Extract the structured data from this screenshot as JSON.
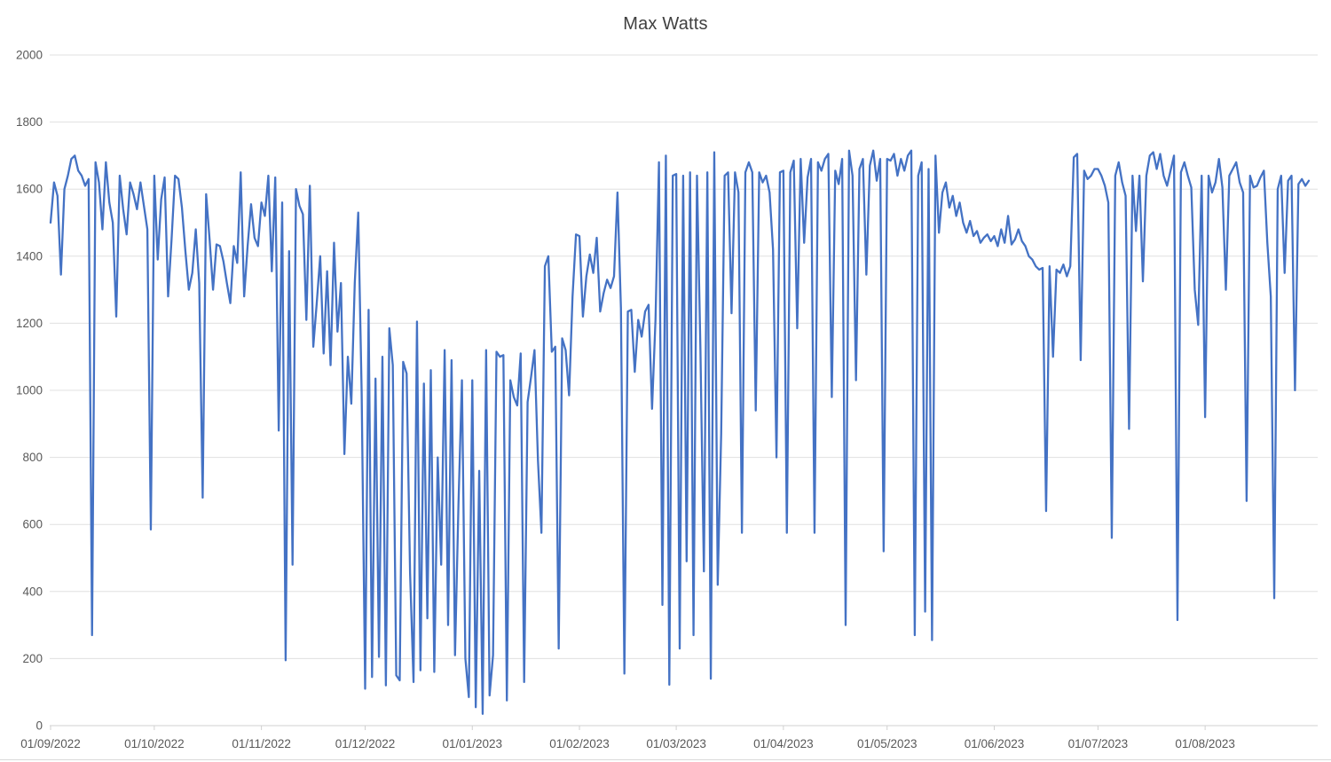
{
  "chart_data": {
    "type": "line",
    "title": "Max Watts",
    "series_name": "Max Watts",
    "xlabel": "",
    "ylabel": "",
    "ylim": [
      0,
      2000
    ],
    "grid": "horizontal",
    "legend": "none",
    "line_color": "#4472C4",
    "gridline_color": "#e0e0e0",
    "axis_line_color": "#d0d0d0",
    "tick_label_color": "#595959",
    "y_ticks": [
      0,
      200,
      400,
      600,
      800,
      1000,
      1200,
      1400,
      1600,
      1800,
      2000
    ],
    "x_tick_labels": [
      "01/09/2022",
      "01/10/2022",
      "01/11/2022",
      "01/12/2022",
      "01/01/2023",
      "01/02/2023",
      "01/03/2023",
      "01/04/2023",
      "01/05/2023",
      "01/06/2023",
      "01/07/2023",
      "01/08/2023"
    ],
    "x_tick_day_indices": [
      0,
      30,
      61,
      91,
      122,
      153,
      181,
      212,
      242,
      273,
      303,
      334
    ],
    "values": [
      1500,
      1620,
      1580,
      1345,
      1600,
      1640,
      1690,
      1700,
      1655,
      1640,
      1610,
      1630,
      270,
      1680,
      1620,
      1480,
      1680,
      1560,
      1500,
      1220,
      1640,
      1540,
      1465,
      1620,
      1585,
      1540,
      1620,
      1550,
      1480,
      585,
      1640,
      1390,
      1570,
      1635,
      1280,
      1450,
      1640,
      1630,
      1545,
      1415,
      1300,
      1350,
      1480,
      1320,
      680,
      1585,
      1450,
      1300,
      1435,
      1430,
      1385,
      1320,
      1260,
      1430,
      1380,
      1650,
      1280,
      1430,
      1555,
      1455,
      1430,
      1560,
      1520,
      1640,
      1355,
      1635,
      880,
      1560,
      195,
      1415,
      480,
      1600,
      1550,
      1525,
      1210,
      1610,
      1130,
      1260,
      1400,
      1110,
      1355,
      1075,
      1440,
      1175,
      1320,
      810,
      1100,
      960,
      1320,
      1530,
      990,
      110,
      1240,
      145,
      1035,
      205,
      1100,
      120,
      1185,
      1075,
      150,
      135,
      1085,
      1050,
      455,
      130,
      1205,
      165,
      1020,
      320,
      1060,
      160,
      800,
      480,
      1120,
      300,
      1090,
      210,
      660,
      1030,
      200,
      85,
      1030,
      55,
      760,
      35,
      1120,
      90,
      210,
      1115,
      1100,
      1105,
      75,
      1030,
      980,
      955,
      1110,
      130,
      965,
      1040,
      1120,
      790,
      575,
      1370,
      1400,
      1115,
      1130,
      230,
      1155,
      1120,
      985,
      1280,
      1465,
      1460,
      1220,
      1340,
      1405,
      1350,
      1455,
      1235,
      1290,
      1330,
      1305,
      1340,
      1590,
      1245,
      155,
      1235,
      1240,
      1055,
      1210,
      1160,
      1235,
      1255,
      945,
      1210,
      1680,
      360,
      1700,
      122,
      1640,
      1645,
      230,
      1640,
      490,
      1650,
      270,
      1640,
      1120,
      460,
      1650,
      140,
      1710,
      420,
      870,
      1640,
      1650,
      1230,
      1650,
      1590,
      575,
      1650,
      1680,
      1650,
      940,
      1650,
      1620,
      1640,
      1590,
      1420,
      800,
      1650,
      1655,
      575,
      1650,
      1685,
      1185,
      1690,
      1440,
      1635,
      1690,
      575,
      1680,
      1655,
      1690,
      1705,
      980,
      1655,
      1615,
      1690,
      300,
      1715,
      1640,
      1030,
      1660,
      1690,
      1345,
      1670,
      1715,
      1625,
      1690,
      520,
      1690,
      1685,
      1705,
      1640,
      1690,
      1655,
      1700,
      1715,
      270,
      1640,
      1680,
      340,
      1660,
      255,
      1700,
      1470,
      1590,
      1620,
      1545,
      1580,
      1520,
      1560,
      1500,
      1470,
      1505,
      1460,
      1475,
      1440,
      1455,
      1465,
      1445,
      1460,
      1430,
      1480,
      1440,
      1520,
      1435,
      1450,
      1480,
      1445,
      1430,
      1400,
      1390,
      1370,
      1360,
      1365,
      640,
      1370,
      1100,
      1360,
      1350,
      1375,
      1340,
      1370,
      1695,
      1705,
      1090,
      1655,
      1630,
      1640,
      1660,
      1660,
      1640,
      1610,
      1560,
      560,
      1640,
      1680,
      1620,
      1580,
      885,
      1640,
      1475,
      1640,
      1325,
      1640,
      1700,
      1710,
      1660,
      1705,
      1640,
      1610,
      1655,
      1700,
      315,
      1650,
      1680,
      1640,
      1605,
      1300,
      1195,
      1640,
      920,
      1640,
      1590,
      1620,
      1690,
      1605,
      1300,
      1640,
      1660,
      1680,
      1620,
      1590,
      670,
      1640,
      1605,
      1610,
      1635,
      1655,
      1440,
      1280,
      380,
      1600,
      1640,
      1350,
      1625,
      1640,
      1000,
      1615,
      1630,
      1610,
      1625
    ]
  }
}
